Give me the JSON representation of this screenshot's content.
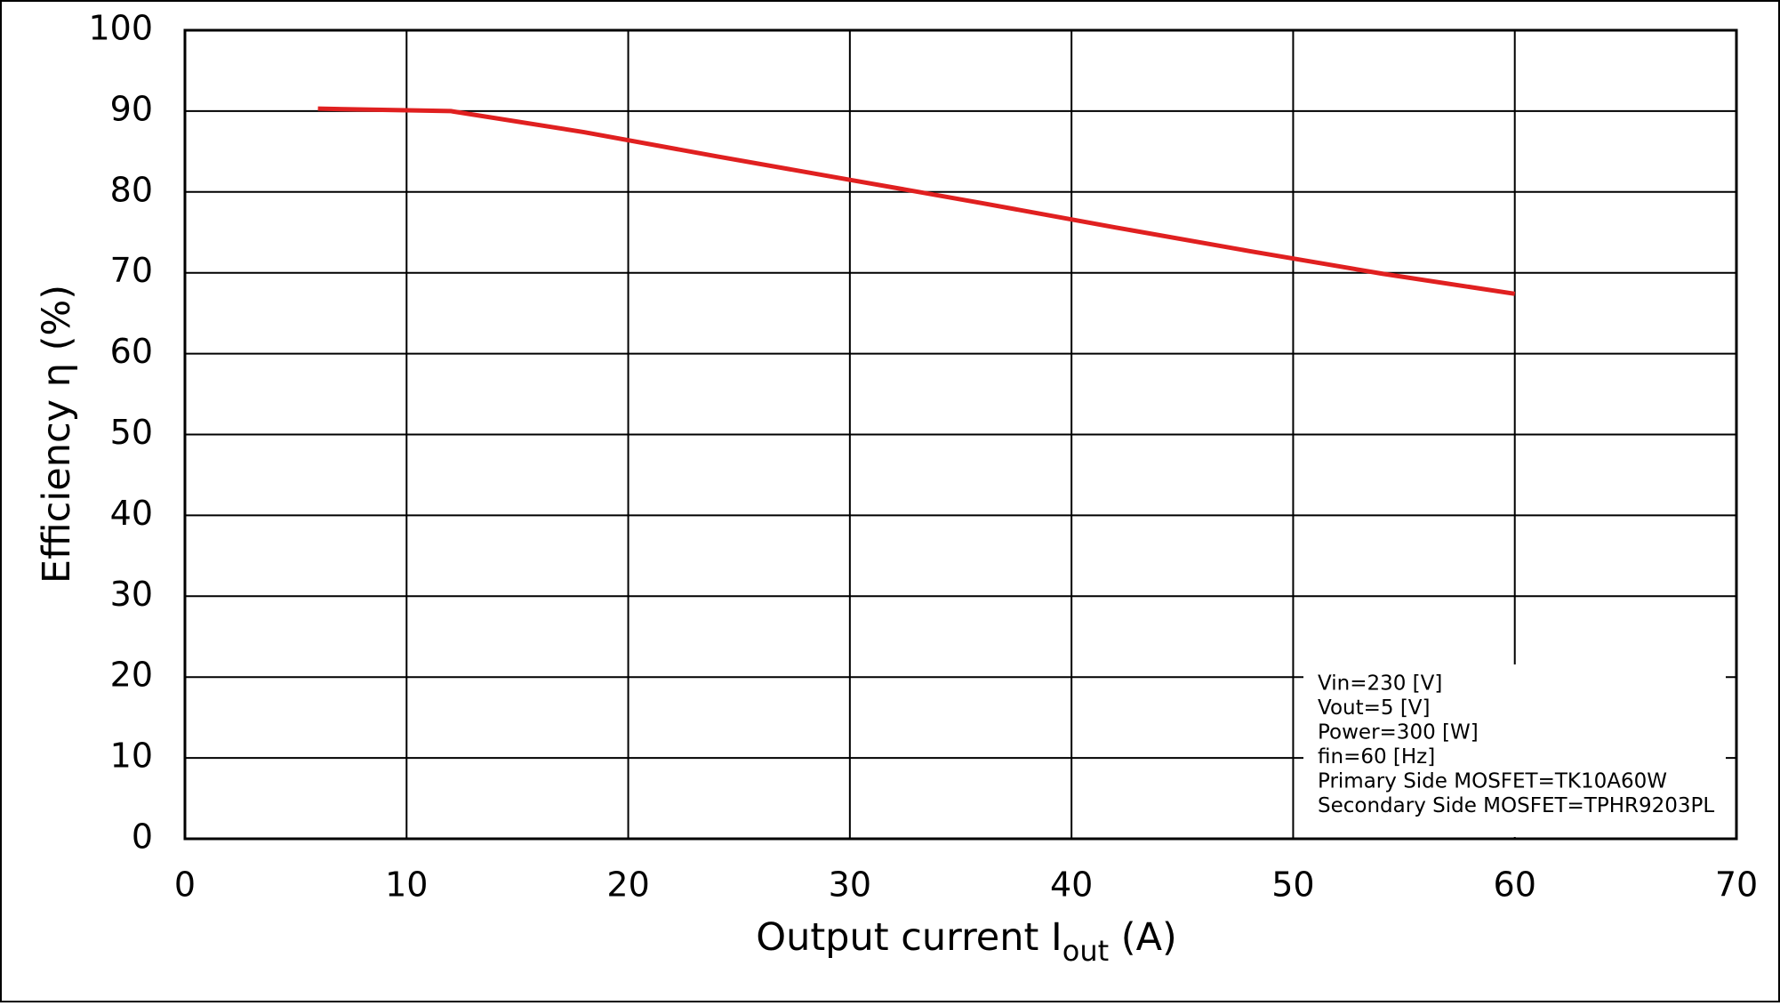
{
  "chart_data": {
    "type": "line",
    "x_label": [
      "Output current  I",
      "out",
      " (A)"
    ],
    "y_label": "Efficiency  η (%)",
    "x": [
      6,
      12,
      18,
      24,
      30,
      36,
      42,
      48,
      54,
      60
    ],
    "series": [
      {
        "name": "Efficiency",
        "color": "#e02020",
        "values": [
          90.3,
          90.0,
          87.4,
          84.4,
          81.5,
          78.6,
          75.6,
          72.7,
          69.9,
          67.4
        ]
      }
    ],
    "xlim": [
      0,
      70
    ],
    "xticks": [
      0,
      10,
      20,
      30,
      40,
      50,
      60,
      70
    ],
    "ylim": [
      0,
      100
    ],
    "yticks": [
      0,
      10,
      20,
      30,
      40,
      50,
      60,
      70,
      80,
      90,
      100
    ],
    "grid": true,
    "annotations": [
      "Vin=230 [V]",
      "Vout=5 [V]",
      "Power=300 [W]",
      "fin=60 [Hz]",
      "Primary Side MOSFET=TK10A60W",
      "Secondary Side MOSFET=TPHR9203PL"
    ]
  }
}
